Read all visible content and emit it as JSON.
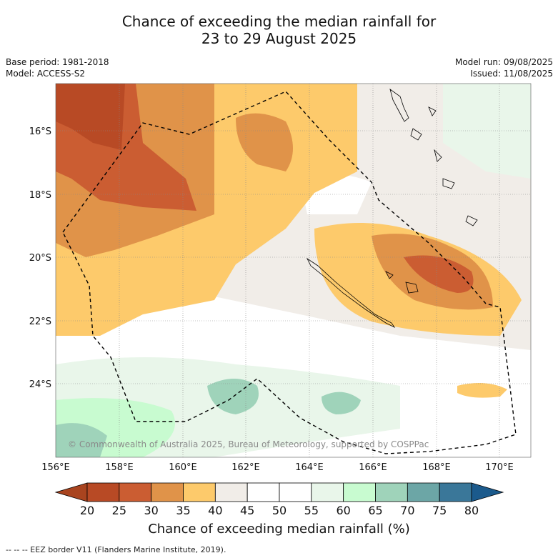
{
  "title_line1": "Chance of exceeding the median rainfall for",
  "title_line2": "23 to 29 August 2025",
  "base_period": "Base period: 1981-2018",
  "model": "Model: ACCESS-S2",
  "model_run": "Model run: 09/08/2025",
  "issued": "Issued: 11/08/2025",
  "copyright": "© Commonwealth of Australia 2025, Bureau of Meteorology, supported by COSPPac",
  "lat_labels": [
    "16°S",
    "18°S",
    "20°S",
    "22°S",
    "24°S"
  ],
  "lon_labels": [
    "156°E",
    "158°E",
    "160°E",
    "162°E",
    "164°E",
    "166°E",
    "168°E",
    "170°E"
  ],
  "colorbar": {
    "ticks": [
      "20",
      "25",
      "30",
      "35",
      "40",
      "45",
      "50",
      "55",
      "60",
      "65",
      "70",
      "75",
      "80"
    ],
    "colors": [
      "#a9441f",
      "#b84a25",
      "#cb5d32",
      "#e09349",
      "#fdca6b",
      "#f1ede8",
      "#ffffff",
      "#ffffff",
      "#e9f6ea",
      "#c8fbd0",
      "#9fd3ba",
      "#6ca6a6",
      "#3a7799",
      "#1b5a8c"
    ],
    "label": "Chance of exceeding median rainfall (%)"
  },
  "eez_note": "--  --  -- EEZ border V11 (Flanders Marine Institute, 2019)."
}
